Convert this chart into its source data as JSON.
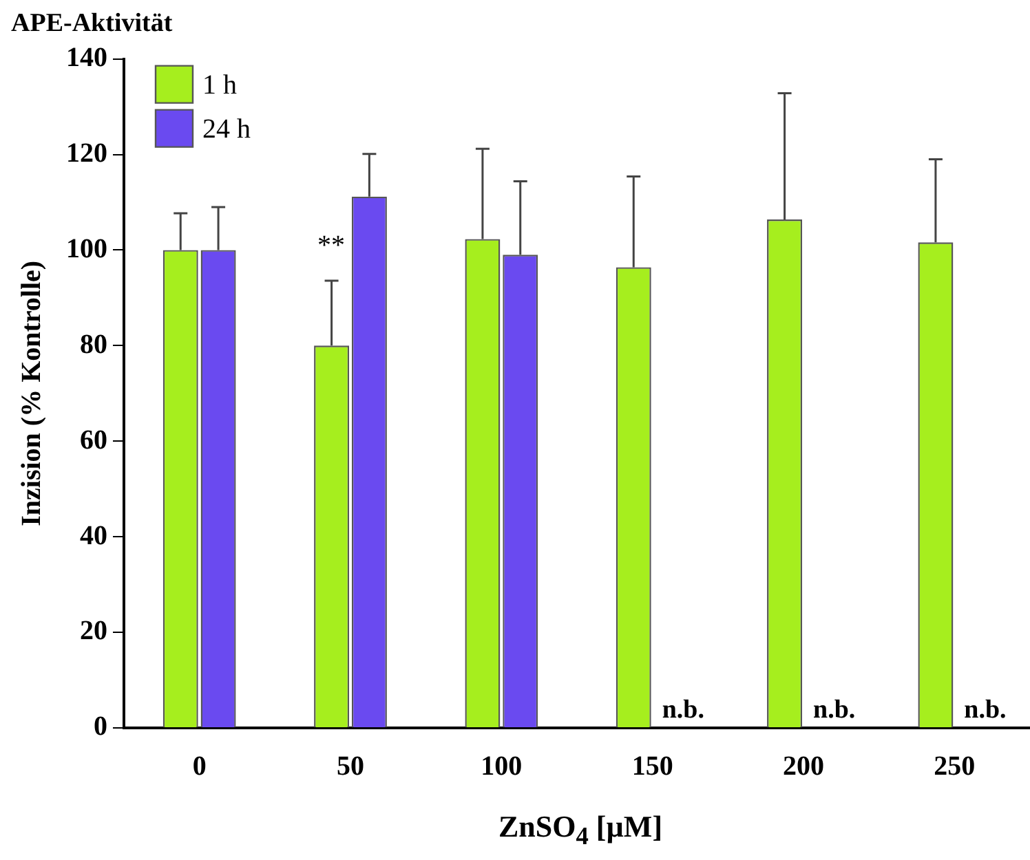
{
  "chart_data": {
    "type": "bar",
    "title": "APE-Aktivität",
    "xlabel": "ZnSO$_{4}$ [µM]",
    "ylabel": "Inzision (% Kontrolle)",
    "categories": [
      "0",
      "50",
      "100",
      "150",
      "200",
      "250"
    ],
    "series": [
      {
        "name": "1 h",
        "color": "#a6ee1e",
        "values": [
          100,
          80,
          102.3,
          96.4,
          106.4,
          101.6
        ],
        "errors": [
          [
            100,
            107.7
          ],
          [
            80,
            93.6
          ],
          [
            102.3,
            121.2
          ],
          [
            96.4,
            115.4
          ],
          [
            106.4,
            132.8
          ],
          [
            101.6,
            119
          ]
        ]
      },
      {
        "name": "24 h",
        "color": "#6a4af0",
        "values": [
          100,
          111.2,
          99,
          null,
          null,
          null
        ],
        "errors": [
          [
            100,
            109
          ],
          [
            111.2,
            120.1
          ],
          [
            99,
            114.4
          ],
          null,
          null,
          null
        ]
      }
    ],
    "ylim": [
      0,
      140
    ],
    "yticks": [
      0,
      20,
      40,
      60,
      80,
      100,
      120,
      140
    ],
    "grid": false,
    "legend": "top left",
    "annotations": [
      {
        "text": "**",
        "x": "50",
        "y": 97
      },
      {
        "text": "n.b.",
        "x": "150",
        "y": 0
      },
      {
        "text": "n.b.",
        "x": "200",
        "y": 0
      },
      {
        "text": "n.b.",
        "x": "250",
        "y": 0
      }
    ]
  }
}
